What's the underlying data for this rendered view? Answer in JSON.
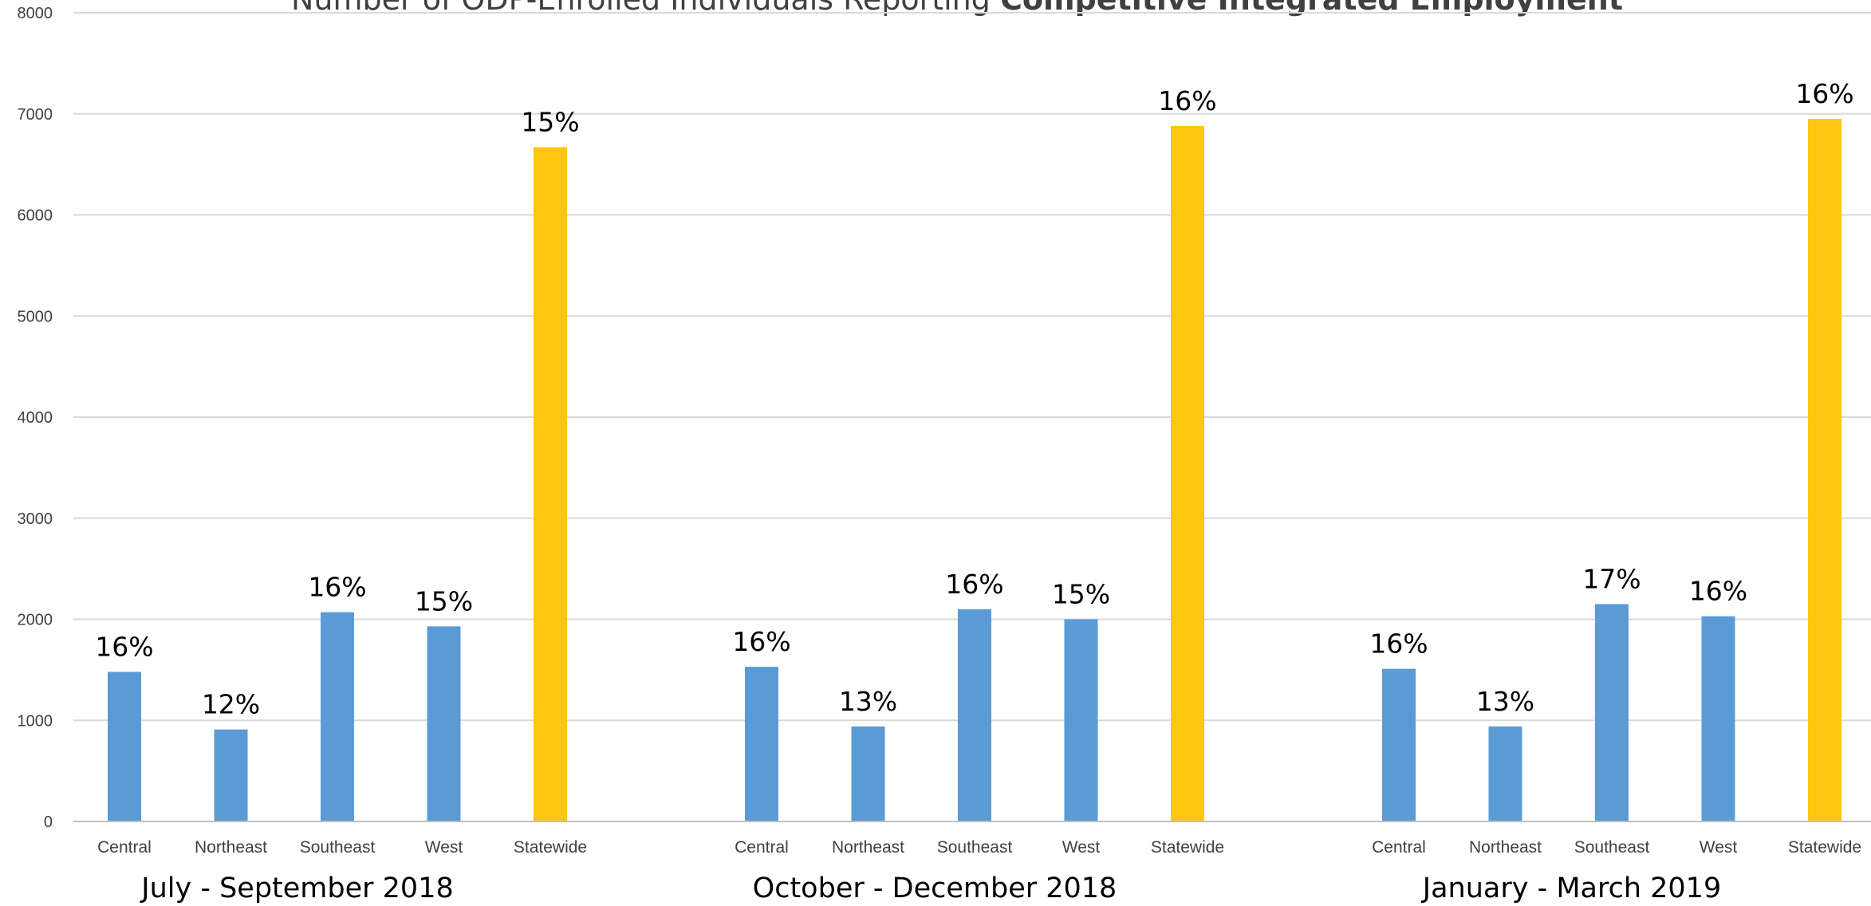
{
  "chart_data": {
    "type": "bar",
    "title": {
      "prefix": "Number of ODP-Enrolled Individuals Reporting ",
      "bold": "Competitive Integrated Employment"
    },
    "xlabel": "",
    "ylabel": "",
    "ylim": [
      0,
      8000
    ],
    "yticks": [
      0,
      1000,
      2000,
      3000,
      4000,
      5000,
      6000,
      7000,
      8000
    ],
    "grid": true,
    "legend": "none",
    "colors": {
      "region": "#5B9BD5",
      "statewide": "#FFC510",
      "grid": "#D9D9D9",
      "axis": "#BFBFBF"
    },
    "categories": [
      "Central",
      "Northeast",
      "Southeast",
      "West",
      "Statewide"
    ],
    "groups": [
      {
        "label": "July - September 2018",
        "values": [
          1480,
          910,
          2070,
          1930,
          6670
        ],
        "labels": [
          "16%",
          "12%",
          "16%",
          "15%",
          "15%"
        ]
      },
      {
        "label": "October - December 2018",
        "values": [
          1530,
          940,
          2100,
          2000,
          6880
        ],
        "labels": [
          "16%",
          "13%",
          "16%",
          "15%",
          "16%"
        ]
      },
      {
        "label": "January - March 2019",
        "values": [
          1510,
          940,
          2150,
          2030,
          6950
        ],
        "labels": [
          "16%",
          "13%",
          "17%",
          "16%",
          "16%"
        ]
      }
    ]
  }
}
